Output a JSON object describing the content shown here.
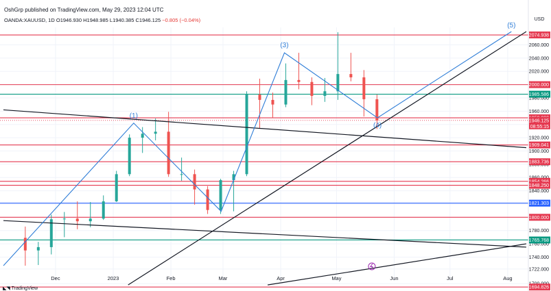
{
  "header": {
    "publisher_line": "OshGrp published on TradingView.com, May 29, 2023 12:04 UTC",
    "symbol": "OANDA:XAUUSD, 1D",
    "o_label": "O",
    "o_value": "1946.930",
    "h_label": "H",
    "h_value": "1948.985",
    "l_label": "L",
    "l_value": "1940.385",
    "c_label": "C",
    "c_value": "1946.125",
    "change": "−0.805 (−0.04%)"
  },
  "currency": "USD",
  "footer_brand": "TradingView",
  "colors": {
    "up": "#26a69a",
    "down": "#ef5350",
    "red_level": "#e53950",
    "green_level": "#089981",
    "blue_level": "#2962ff",
    "wave": "#2e7dd7",
    "trend": "#131722",
    "axis_text": "#131722",
    "grid": "#f0f3fa"
  },
  "chart_data": {
    "type": "candlestick",
    "title": "OANDA:XAUUSD, 1D",
    "ylim": [
      1680,
      2090
    ],
    "y_ticks": [
      "2060.000",
      "2040.000",
      "2020.000",
      "2000.000",
      "1980.000",
      "1960.000",
      "1940.000",
      "1920.000",
      "1900.000",
      "1880.000",
      "1860.000",
      "1840.000",
      "1820.000",
      "1800.000",
      "1780.000",
      "1760.000",
      "1740.000",
      "1722.000",
      "1700.000"
    ],
    "x_ticks": [
      {
        "label": "Dec",
        "date": "2022-12-01"
      },
      {
        "label": "2023",
        "date": "2023-01-01"
      },
      {
        "label": "Feb",
        "date": "2023-02-01"
      },
      {
        "label": "Mar",
        "date": "2023-03-01"
      },
      {
        "label": "Apr",
        "date": "2023-04-01"
      },
      {
        "label": "May",
        "date": "2023-05-01"
      },
      {
        "label": "Jun",
        "date": "2023-06-01"
      },
      {
        "label": "Jul",
        "date": "2023-07-01"
      },
      {
        "label": "Aug",
        "date": "2023-08-01"
      }
    ],
    "price_levels": [
      {
        "value": 2074.938,
        "label": "2074.938",
        "color": "red"
      },
      {
        "value": 2000.0,
        "label": "2000.000",
        "color": "red"
      },
      {
        "value": 1985.586,
        "label": "1985.586",
        "color": "green"
      },
      {
        "value": 1950.0,
        "label": "1950.000",
        "color": "red"
      },
      {
        "value": 1909.041,
        "label": "1909.041",
        "color": "red"
      },
      {
        "value": 1883.736,
        "label": "1883.736",
        "color": "red"
      },
      {
        "value": 1854.266,
        "label": "1854.266",
        "color": "red"
      },
      {
        "value": 1848.25,
        "label": "1848.250",
        "color": "red"
      },
      {
        "value": 1821.303,
        "label": "1821.303",
        "color": "blue"
      },
      {
        "value": 1800.0,
        "label": "1800.000",
        "color": "red"
      },
      {
        "value": 1765.768,
        "label": "1765.768",
        "color": "green"
      },
      {
        "value": 1694.826,
        "label": "1694.826",
        "color": "red"
      }
    ],
    "last_price": {
      "value": 1946.125,
      "label": "1946.125",
      "countdown": "08:55:15"
    },
    "ohlc_weekly": [
      {
        "date": "2022-11-14",
        "o": 1769,
        "h": 1786,
        "l": 1727,
        "c": 1750
      },
      {
        "date": "2022-11-21",
        "o": 1750,
        "h": 1763,
        "l": 1728,
        "c": 1755
      },
      {
        "date": "2022-11-28",
        "o": 1755,
        "h": 1804,
        "l": 1744,
        "c": 1797
      },
      {
        "date": "2022-12-05",
        "o": 1797,
        "h": 1808,
        "l": 1770,
        "c": 1798
      },
      {
        "date": "2022-12-12",
        "o": 1798,
        "h": 1824,
        "l": 1782,
        "c": 1794
      },
      {
        "date": "2022-12-19",
        "o": 1794,
        "h": 1823,
        "l": 1785,
        "c": 1798
      },
      {
        "date": "2022-12-26",
        "o": 1798,
        "h": 1833,
        "l": 1796,
        "c": 1824
      },
      {
        "date": "2023-01-02",
        "o": 1824,
        "h": 1870,
        "l": 1823,
        "c": 1865
      },
      {
        "date": "2023-01-09",
        "o": 1865,
        "h": 1925,
        "l": 1862,
        "c": 1920
      },
      {
        "date": "2023-01-16",
        "o": 1920,
        "h": 1936,
        "l": 1897,
        "c": 1926
      },
      {
        "date": "2023-01-23",
        "o": 1926,
        "h": 1949,
        "l": 1916,
        "c": 1929
      },
      {
        "date": "2023-01-30",
        "o": 1929,
        "h": 1959,
        "l": 1861,
        "c": 1865
      },
      {
        "date": "2023-02-06",
        "o": 1865,
        "h": 1890,
        "l": 1855,
        "c": 1865
      },
      {
        "date": "2023-02-13",
        "o": 1865,
        "h": 1872,
        "l": 1819,
        "c": 1842
      },
      {
        "date": "2023-02-20",
        "o": 1842,
        "h": 1847,
        "l": 1805,
        "c": 1811
      },
      {
        "date": "2023-02-27",
        "o": 1811,
        "h": 1858,
        "l": 1805,
        "c": 1856
      },
      {
        "date": "2023-03-06",
        "o": 1856,
        "h": 1870,
        "l": 1809,
        "c": 1865
      },
      {
        "date": "2023-03-13",
        "o": 1865,
        "h": 1990,
        "l": 1862,
        "c": 1985
      },
      {
        "date": "2023-03-20",
        "o": 1985,
        "h": 2009,
        "l": 1934,
        "c": 1977
      },
      {
        "date": "2023-03-27",
        "o": 1977,
        "h": 1988,
        "l": 1950,
        "c": 1970
      },
      {
        "date": "2023-04-03",
        "o": 1970,
        "h": 2032,
        "l": 1966,
        "c": 2007
      },
      {
        "date": "2023-04-10",
        "o": 2007,
        "h": 2048,
        "l": 1993,
        "c": 2004
      },
      {
        "date": "2023-04-17",
        "o": 2004,
        "h": 2011,
        "l": 1969,
        "c": 1983
      },
      {
        "date": "2023-04-24",
        "o": 1983,
        "h": 2010,
        "l": 1974,
        "c": 1990
      },
      {
        "date": "2023-05-01",
        "o": 1990,
        "h": 2079,
        "l": 1977,
        "c": 2016
      },
      {
        "date": "2023-05-08",
        "o": 2016,
        "h": 2048,
        "l": 2005,
        "c": 2011
      },
      {
        "date": "2023-05-15",
        "o": 2011,
        "h": 2022,
        "l": 1952,
        "c": 1978
      },
      {
        "date": "2023-05-22",
        "o": 1978,
        "h": 1985,
        "l": 1933,
        "c": 1946
      }
    ],
    "waves": {
      "points": [
        {
          "date": "2022-11-03",
          "value": 1727
        },
        {
          "date": "2023-01-12",
          "value": 1942
        },
        {
          "date": "2023-02-28",
          "value": 1809
        },
        {
          "date": "2023-04-03",
          "value": 2048
        },
        {
          "date": "2023-05-23",
          "value": 1950
        },
        {
          "date": "2023-08-03",
          "value": 2080
        }
      ],
      "labels": [
        "(1)",
        "(3)",
        "(4)",
        "(5)"
      ]
    },
    "trendlines": [
      {
        "from": {
          "date": "2023-01-09",
          "value": 1698
        },
        "to": {
          "date": "2023-08-11",
          "value": 2080
        }
      },
      {
        "from": {
          "date": "2022-11-03",
          "value": 1962
        },
        "to": {
          "date": "2023-08-11",
          "value": 1905
        }
      },
      {
        "from": {
          "date": "2022-11-03",
          "value": 1795
        },
        "to": {
          "date": "2023-08-11",
          "value": 1755
        }
      },
      {
        "from": {
          "date": "2023-03-25",
          "value": 1698
        },
        "to": {
          "date": "2023-08-11",
          "value": 1760
        }
      }
    ]
  }
}
